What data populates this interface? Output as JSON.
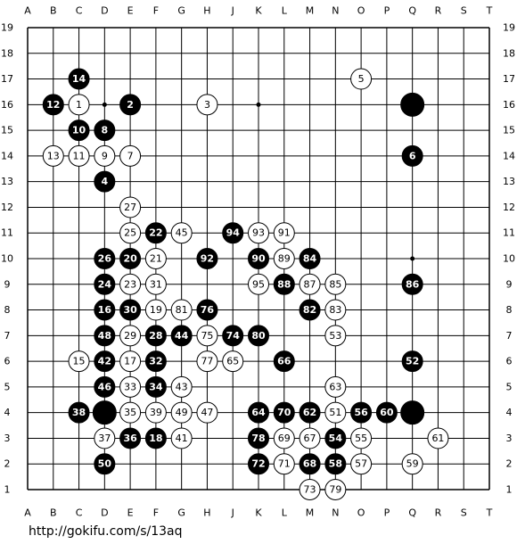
{
  "columns": [
    "A",
    "B",
    "C",
    "D",
    "E",
    "F",
    "G",
    "H",
    "J",
    "K",
    "L",
    "M",
    "N",
    "O",
    "P",
    "Q",
    "R",
    "S",
    "T"
  ],
  "rows": [
    19,
    18,
    17,
    16,
    15,
    14,
    13,
    12,
    11,
    10,
    9,
    8,
    7,
    6,
    5,
    4,
    3,
    2,
    1
  ],
  "stones": [
    {
      "col": "C",
      "row": 17,
      "color": "black",
      "move": 14
    },
    {
      "col": "O",
      "row": 17,
      "color": "white",
      "move": 5
    },
    {
      "col": "B",
      "row": 16,
      "color": "black",
      "move": 12
    },
    {
      "col": "C",
      "row": 16,
      "color": "white",
      "move": 1
    },
    {
      "col": "E",
      "row": 16,
      "color": "black",
      "move": 2
    },
    {
      "col": "H",
      "row": 16,
      "color": "white",
      "move": 3
    },
    {
      "col": "Q",
      "row": 16,
      "color": "black"
    },
    {
      "col": "C",
      "row": 15,
      "color": "black",
      "move": 10
    },
    {
      "col": "D",
      "row": 15,
      "color": "black",
      "move": 8
    },
    {
      "col": "B",
      "row": 14,
      "color": "white",
      "move": 13
    },
    {
      "col": "C",
      "row": 14,
      "color": "white",
      "move": 11
    },
    {
      "col": "D",
      "row": 14,
      "color": "white",
      "move": 9
    },
    {
      "col": "E",
      "row": 14,
      "color": "white",
      "move": 7
    },
    {
      "col": "Q",
      "row": 14,
      "color": "black",
      "move": 6
    },
    {
      "col": "D",
      "row": 13,
      "color": "black",
      "move": 4
    },
    {
      "col": "E",
      "row": 12,
      "color": "white",
      "move": 27
    },
    {
      "col": "E",
      "row": 11,
      "color": "white",
      "move": 25
    },
    {
      "col": "F",
      "row": 11,
      "color": "black",
      "move": 22
    },
    {
      "col": "G",
      "row": 11,
      "color": "white",
      "move": 45
    },
    {
      "col": "J",
      "row": 11,
      "color": "black",
      "move": 94
    },
    {
      "col": "K",
      "row": 11,
      "color": "white",
      "move": 93
    },
    {
      "col": "L",
      "row": 11,
      "color": "white",
      "move": 91
    },
    {
      "col": "D",
      "row": 10,
      "color": "black",
      "move": 26
    },
    {
      "col": "E",
      "row": 10,
      "color": "black",
      "move": 20
    },
    {
      "col": "F",
      "row": 10,
      "color": "white",
      "move": 21
    },
    {
      "col": "H",
      "row": 10,
      "color": "black",
      "move": 92
    },
    {
      "col": "K",
      "row": 10,
      "color": "black",
      "move": 90
    },
    {
      "col": "L",
      "row": 10,
      "color": "white",
      "move": 89
    },
    {
      "col": "M",
      "row": 10,
      "color": "black",
      "move": 84
    },
    {
      "col": "D",
      "row": 9,
      "color": "black",
      "move": 24
    },
    {
      "col": "E",
      "row": 9,
      "color": "white",
      "move": 23
    },
    {
      "col": "F",
      "row": 9,
      "color": "white",
      "move": 31
    },
    {
      "col": "K",
      "row": 9,
      "color": "white",
      "move": 95
    },
    {
      "col": "L",
      "row": 9,
      "color": "black",
      "move": 88
    },
    {
      "col": "M",
      "row": 9,
      "color": "white",
      "move": 87
    },
    {
      "col": "N",
      "row": 9,
      "color": "white",
      "move": 85
    },
    {
      "col": "Q",
      "row": 9,
      "color": "black",
      "move": 86
    },
    {
      "col": "D",
      "row": 8,
      "color": "black",
      "move": 16
    },
    {
      "col": "E",
      "row": 8,
      "color": "black",
      "move": 30
    },
    {
      "col": "F",
      "row": 8,
      "color": "white",
      "move": 19
    },
    {
      "col": "G",
      "row": 8,
      "color": "white",
      "move": 81
    },
    {
      "col": "H",
      "row": 8,
      "color": "black",
      "move": 76
    },
    {
      "col": "M",
      "row": 8,
      "color": "black",
      "move": 82
    },
    {
      "col": "N",
      "row": 8,
      "color": "white",
      "move": 83
    },
    {
      "col": "D",
      "row": 7,
      "color": "black",
      "move": 48
    },
    {
      "col": "E",
      "row": 7,
      "color": "white",
      "move": 29
    },
    {
      "col": "F",
      "row": 7,
      "color": "black",
      "move": 28
    },
    {
      "col": "G",
      "row": 7,
      "color": "black",
      "move": 44
    },
    {
      "col": "H",
      "row": 7,
      "color": "white",
      "move": 75
    },
    {
      "col": "J",
      "row": 7,
      "color": "black",
      "move": 74
    },
    {
      "col": "K",
      "row": 7,
      "color": "black",
      "move": 80
    },
    {
      "col": "N",
      "row": 7,
      "color": "white",
      "move": 53
    },
    {
      "col": "C",
      "row": 6,
      "color": "white",
      "move": 15
    },
    {
      "col": "D",
      "row": 6,
      "color": "black",
      "move": 42
    },
    {
      "col": "E",
      "row": 6,
      "color": "white",
      "move": 17
    },
    {
      "col": "F",
      "row": 6,
      "color": "black",
      "move": 32
    },
    {
      "col": "H",
      "row": 6,
      "color": "white",
      "move": 77
    },
    {
      "col": "J",
      "row": 6,
      "color": "white",
      "move": 65
    },
    {
      "col": "L",
      "row": 6,
      "color": "black",
      "move": 66
    },
    {
      "col": "Q",
      "row": 6,
      "color": "black",
      "move": 52
    },
    {
      "col": "D",
      "row": 5,
      "color": "black",
      "move": 46
    },
    {
      "col": "E",
      "row": 5,
      "color": "white",
      "move": 33
    },
    {
      "col": "F",
      "row": 5,
      "color": "black",
      "move": 34
    },
    {
      "col": "G",
      "row": 5,
      "color": "white",
      "move": 43
    },
    {
      "col": "N",
      "row": 5,
      "color": "white",
      "move": 63
    },
    {
      "col": "C",
      "row": 4,
      "color": "black",
      "move": 38
    },
    {
      "col": "D",
      "row": 4,
      "color": "black"
    },
    {
      "col": "E",
      "row": 4,
      "color": "white",
      "move": 35
    },
    {
      "col": "F",
      "row": 4,
      "color": "white",
      "move": 39
    },
    {
      "col": "G",
      "row": 4,
      "color": "white",
      "move": 49
    },
    {
      "col": "H",
      "row": 4,
      "color": "white",
      "move": 47
    },
    {
      "col": "K",
      "row": 4,
      "color": "black",
      "move": 64
    },
    {
      "col": "L",
      "row": 4,
      "color": "black",
      "move": 70
    },
    {
      "col": "M",
      "row": 4,
      "color": "black",
      "move": 62
    },
    {
      "col": "N",
      "row": 4,
      "color": "white",
      "move": 51
    },
    {
      "col": "O",
      "row": 4,
      "color": "black",
      "move": 56
    },
    {
      "col": "P",
      "row": 4,
      "color": "black",
      "move": 60
    },
    {
      "col": "Q",
      "row": 4,
      "color": "black"
    },
    {
      "col": "D",
      "row": 3,
      "color": "white",
      "move": 37
    },
    {
      "col": "E",
      "row": 3,
      "color": "black",
      "move": 36
    },
    {
      "col": "F",
      "row": 3,
      "color": "black",
      "move": 18
    },
    {
      "col": "G",
      "row": 3,
      "color": "white",
      "move": 41
    },
    {
      "col": "K",
      "row": 3,
      "color": "black",
      "move": 78
    },
    {
      "col": "L",
      "row": 3,
      "color": "white",
      "move": 69
    },
    {
      "col": "M",
      "row": 3,
      "color": "white",
      "move": 67
    },
    {
      "col": "N",
      "row": 3,
      "color": "black",
      "move": 54
    },
    {
      "col": "O",
      "row": 3,
      "color": "white",
      "move": 55
    },
    {
      "col": "R",
      "row": 3,
      "color": "white",
      "move": 61
    },
    {
      "col": "D",
      "row": 2,
      "color": "black",
      "move": 50
    },
    {
      "col": "K",
      "row": 2,
      "color": "black",
      "move": 72
    },
    {
      "col": "L",
      "row": 2,
      "color": "white",
      "move": 71
    },
    {
      "col": "M",
      "row": 2,
      "color": "black",
      "move": 68
    },
    {
      "col": "N",
      "row": 2,
      "color": "black",
      "move": 58
    },
    {
      "col": "O",
      "row": 2,
      "color": "white",
      "move": 57
    },
    {
      "col": "Q",
      "row": 2,
      "color": "white",
      "move": 59
    },
    {
      "col": "M",
      "row": 1,
      "color": "white",
      "move": 73
    },
    {
      "col": "N",
      "row": 1,
      "color": "white",
      "move": 79
    }
  ],
  "footer": {
    "url": "http://gokifu.com/s/13aq"
  }
}
